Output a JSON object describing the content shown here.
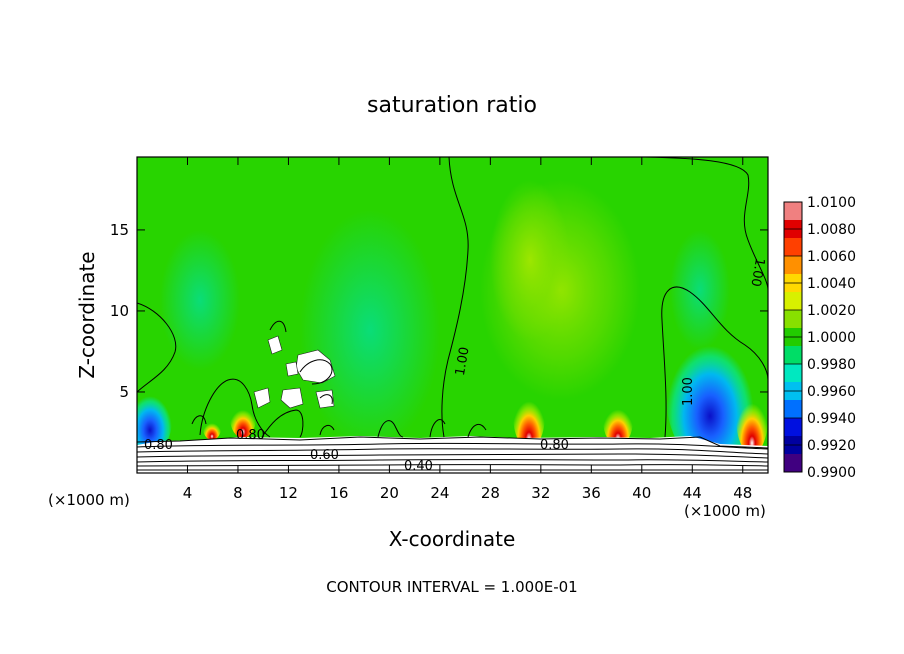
{
  "chart_data": {
    "type": "heatmap",
    "title": "saturation ratio",
    "xlabel": "X-coordinate",
    "ylabel": "Z-coordinate",
    "x_unit_left": "(×1000 m)",
    "x_unit_right": "(×1000 m)",
    "xlim": [
      0,
      50
    ],
    "ylim": [
      0,
      19.5
    ],
    "x_ticks": [
      4,
      8,
      12,
      16,
      20,
      24,
      28,
      32,
      36,
      40,
      44,
      48
    ],
    "y_ticks": [
      5,
      10,
      15
    ],
    "footer": "CONTOUR INTERVAL = 1.000E-01",
    "colorbar": {
      "labels": [
        "1.0100",
        "1.0080",
        "1.0060",
        "1.0040",
        "1.0020",
        "1.0000",
        "0.9980",
        "0.9960",
        "0.9940",
        "0.9920",
        "0.9900"
      ],
      "colors": [
        "#f08080",
        "#e00000",
        "#ff4000",
        "#ff9000",
        "#ffd800",
        "#d8f000",
        "#88e000",
        "#22cc00",
        "#00dd66",
        "#00e8c0",
        "#00c0f0",
        "#0070ff",
        "#0010e0",
        "#0000a0",
        "#400080"
      ]
    },
    "contour_labels": [
      {
        "text": "1.00",
        "x": 27.8,
        "z": 7.2
      },
      {
        "text": "1.00",
        "x": 42.5,
        "z": 5.0
      },
      {
        "text": "1.00",
        "x": 48.9,
        "z": 12.5
      },
      {
        "text": "0.80",
        "x": 2.0,
        "z": 1.8
      },
      {
        "text": "0.80",
        "x": 8.6,
        "z": 2.6
      },
      {
        "text": "0.80",
        "x": 34.5,
        "z": 1.9
      },
      {
        "text": "0.60",
        "x": 15.4,
        "z": 1.1
      },
      {
        "text": "0.40",
        "x": 23.0,
        "z": 0.4
      }
    ],
    "features": [
      {
        "type": "dry_blue",
        "x": 45.2,
        "z": 4.5
      },
      {
        "type": "dry_blue",
        "x": 2.5,
        "z": 3.2
      },
      {
        "type": "moist_red",
        "x": 30.8,
        "z": 3.0
      },
      {
        "type": "moist_red",
        "x": 38.0,
        "z": 3.0
      },
      {
        "type": "moist_red",
        "x": 48.5,
        "z": 2.8
      },
      {
        "type": "moist_red",
        "x": 8.2,
        "z": 3.0
      },
      {
        "type": "moist_red",
        "x": 6.0,
        "z": 2.6
      }
    ]
  }
}
